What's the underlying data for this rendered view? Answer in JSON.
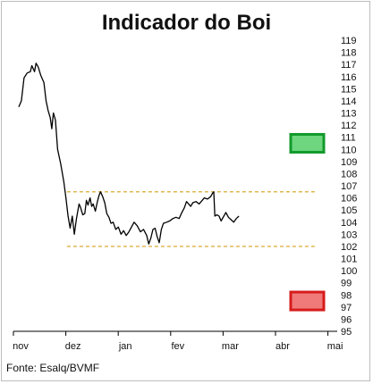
{
  "chart_data": {
    "type": "line",
    "title": "Indicador do Boi",
    "source": "Fonte: Esalq/BVMF",
    "x_ticks": [
      "nov",
      "dez",
      "jan",
      "fev",
      "mar",
      "abr",
      "mai"
    ],
    "ylim": [
      95,
      119
    ],
    "y_ticks": [
      95,
      96,
      97,
      98,
      99,
      100,
      101,
      102,
      103,
      104,
      105,
      106,
      107,
      108,
      109,
      110,
      111,
      112,
      113,
      114,
      115,
      116,
      117,
      118,
      119
    ],
    "grid": false,
    "series": [
      {
        "color": "#000000",
        "points": [
          [
            0.0,
            113.5
          ],
          [
            0.05,
            114.0
          ],
          [
            0.1,
            115.9
          ],
          [
            0.16,
            116.3
          ],
          [
            0.22,
            116.4
          ],
          [
            0.25,
            116.9
          ],
          [
            0.3,
            116.4
          ],
          [
            0.33,
            117.1
          ],
          [
            0.37,
            116.8
          ],
          [
            0.42,
            116.1
          ],
          [
            0.48,
            115.5
          ],
          [
            0.52,
            114.0
          ],
          [
            0.56,
            113.2
          ],
          [
            0.6,
            112.6
          ],
          [
            0.63,
            111.7
          ],
          [
            0.66,
            113.0
          ],
          [
            0.7,
            112.4
          ],
          [
            0.74,
            110.0
          ],
          [
            0.8,
            108.8
          ],
          [
            0.86,
            107.3
          ],
          [
            0.9,
            106.0
          ],
          [
            0.94,
            104.5
          ],
          [
            0.98,
            103.5
          ],
          [
            1.02,
            104.5
          ],
          [
            1.06,
            103.0
          ],
          [
            1.1,
            104.3
          ],
          [
            1.15,
            105.5
          ],
          [
            1.18,
            105.2
          ],
          [
            1.22,
            104.6
          ],
          [
            1.26,
            104.7
          ],
          [
            1.29,
            105.8
          ],
          [
            1.32,
            105.4
          ],
          [
            1.36,
            106.0
          ],
          [
            1.39,
            105.3
          ],
          [
            1.42,
            105.5
          ],
          [
            1.46,
            104.9
          ],
          [
            1.5,
            105.7
          ],
          [
            1.53,
            106.2
          ],
          [
            1.56,
            106.5
          ],
          [
            1.6,
            106.1
          ],
          [
            1.64,
            105.6
          ],
          [
            1.68,
            104.7
          ],
          [
            1.72,
            104.4
          ],
          [
            1.76,
            103.9
          ],
          [
            1.8,
            104.0
          ],
          [
            1.85,
            103.4
          ],
          [
            1.9,
            103.6
          ],
          [
            1.95,
            103.0
          ],
          [
            2.0,
            103.3
          ],
          [
            2.05,
            102.9
          ],
          [
            2.1,
            103.2
          ],
          [
            2.15,
            103.6
          ],
          [
            2.2,
            104.0
          ],
          [
            2.26,
            103.7
          ],
          [
            2.32,
            103.2
          ],
          [
            2.38,
            103.4
          ],
          [
            2.44,
            102.9
          ],
          [
            2.48,
            102.2
          ],
          [
            2.52,
            102.7
          ],
          [
            2.56,
            103.4
          ],
          [
            2.6,
            103.5
          ],
          [
            2.64,
            102.8
          ],
          [
            2.68,
            102.3
          ],
          [
            2.72,
            103.4
          ],
          [
            2.76,
            103.9
          ],
          [
            2.82,
            104.0
          ],
          [
            2.88,
            104.1
          ],
          [
            2.94,
            104.3
          ],
          [
            3.0,
            104.4
          ],
          [
            3.06,
            104.3
          ],
          [
            3.1,
            104.7
          ],
          [
            3.16,
            105.2
          ],
          [
            3.2,
            105.7
          ],
          [
            3.24,
            105.5
          ],
          [
            3.28,
            105.3
          ],
          [
            3.32,
            105.6
          ],
          [
            3.38,
            105.7
          ],
          [
            3.44,
            105.5
          ],
          [
            3.5,
            105.8
          ],
          [
            3.54,
            106.0
          ],
          [
            3.6,
            105.9
          ],
          [
            3.66,
            106.1
          ],
          [
            3.7,
            106.4
          ],
          [
            3.72,
            106.5
          ],
          [
            3.74,
            104.5
          ],
          [
            3.78,
            104.6
          ],
          [
            3.82,
            104.5
          ],
          [
            3.86,
            104.1
          ],
          [
            3.9,
            104.4
          ],
          [
            3.95,
            104.8
          ],
          [
            4.0,
            104.4
          ],
          [
            4.05,
            104.2
          ],
          [
            4.1,
            104.0
          ],
          [
            4.15,
            104.3
          ],
          [
            4.2,
            104.5
          ]
        ]
      }
    ],
    "annotations": {
      "band_upper": 106.5,
      "band_lower": 102.0,
      "band_color": "#d4a017",
      "green_marker": {
        "value": 110.5,
        "fill": "#6dd67f",
        "border": "#119a2b"
      },
      "red_marker": {
        "value": 97.5,
        "fill": "#f07a7a",
        "border": "#d61b1b"
      }
    }
  }
}
